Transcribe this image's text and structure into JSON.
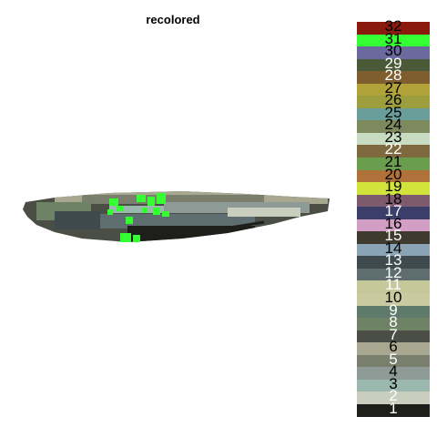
{
  "title": "recolored",
  "image": {
    "icon": "fish-specimen-recolored",
    "highlight_color": "#33ff33"
  },
  "palette": [
    {
      "label": "32",
      "color": "#8b1a0e",
      "text_color": "#000000"
    },
    {
      "label": "31",
      "color": "#33ff33",
      "text_color": "#000000"
    },
    {
      "label": "30",
      "color": "#6b6a9e",
      "text_color": "#000000"
    },
    {
      "label": "29",
      "color": "#4a5a38",
      "text_color": "#ffffff"
    },
    {
      "label": "28",
      "color": "#7e5e2e",
      "text_color": "#ffffff"
    },
    {
      "label": "27",
      "color": "#b2a23a",
      "text_color": "#000000"
    },
    {
      "label": "26",
      "color": "#9c9e3e",
      "text_color": "#000000"
    },
    {
      "label": "25",
      "color": "#6a9e9a",
      "text_color": "#000000"
    },
    {
      "label": "24",
      "color": "#7e8a5e",
      "text_color": "#000000"
    },
    {
      "label": "23",
      "color": "#c8dcc2",
      "text_color": "#000000"
    },
    {
      "label": "22",
      "color": "#7e6a3e",
      "text_color": "#ffffff"
    },
    {
      "label": "21",
      "color": "#6a9e4e",
      "text_color": "#000000"
    },
    {
      "label": "20",
      "color": "#b0723a",
      "text_color": "#000000"
    },
    {
      "label": "19",
      "color": "#d2e43c",
      "text_color": "#000000"
    },
    {
      "label": "18",
      "color": "#7e5a6e",
      "text_color": "#000000"
    },
    {
      "label": "17",
      "color": "#3c3e6a",
      "text_color": "#ffffff"
    },
    {
      "label": "16",
      "color": "#d29ec4",
      "text_color": "#000000"
    },
    {
      "label": "15",
      "color": "#3e3a2e",
      "text_color": "#ffffff"
    },
    {
      "label": "14",
      "color": "#8aa4b6",
      "text_color": "#000000"
    },
    {
      "label": "13",
      "color": "#3e4a4e",
      "text_color": "#ffffff"
    },
    {
      "label": "12",
      "color": "#5e6e70",
      "text_color": "#ffffff"
    },
    {
      "label": "11",
      "color": "#c4c89a",
      "text_color": "#ffffff"
    },
    {
      "label": "10",
      "color": "#cacaa0",
      "text_color": "#000000"
    },
    {
      "label": "9",
      "color": "#5e7a6a",
      "text_color": "#ffffff"
    },
    {
      "label": "8",
      "color": "#6e8266",
      "text_color": "#ffffff"
    },
    {
      "label": "7",
      "color": "#4a4e44",
      "text_color": "#ffffff"
    },
    {
      "label": "6",
      "color": "#a8a890",
      "text_color": "#000000"
    },
    {
      "label": "5",
      "color": "#7a7e6c",
      "text_color": "#ffffff"
    },
    {
      "label": "4",
      "color": "#8e9a96",
      "text_color": "#000000"
    },
    {
      "label": "3",
      "color": "#9ab8ae",
      "text_color": "#000000"
    },
    {
      "label": "2",
      "color": "#cacebe",
      "text_color": "#ffffff"
    },
    {
      "label": "1",
      "color": "#1e1e1a",
      "text_color": "#ffffff"
    }
  ]
}
